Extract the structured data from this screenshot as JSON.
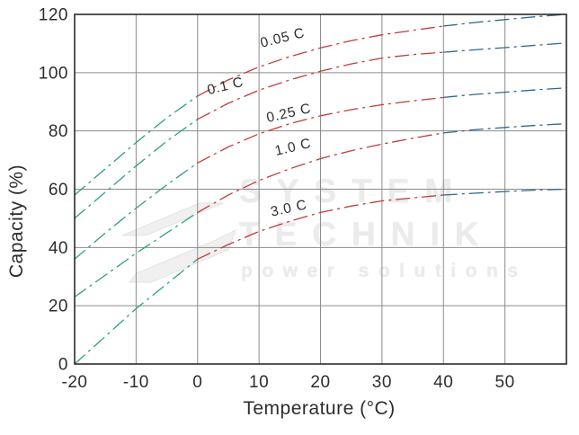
{
  "figure": {
    "watermark": {
      "line1": "SYSTEM",
      "line2": "TECHNIK",
      "line3": "power solutions"
    }
  },
  "chart_data": {
    "type": "line",
    "title": "",
    "xlabel": "Temperature (°C)",
    "ylabel": "Capacity (%)",
    "xlim": [
      -20,
      60
    ],
    "ylim": [
      0,
      120
    ],
    "x_ticks": [
      -20,
      -10,
      0,
      10,
      20,
      30,
      40,
      50
    ],
    "y_ticks": [
      0,
      20,
      40,
      60,
      80,
      100,
      120
    ],
    "grid": true,
    "line_style": "dash-dot",
    "legend_position": "inline-curve-labels",
    "segment_breaks_t": [
      0,
      40
    ],
    "colors": {
      "cold_below_0C": "#2fa07c",
      "mid_0_to_40C": "#c13b3b",
      "hot_above_40C": "#30688a",
      "grid": "#8c8c8c",
      "border": "#2b2b2b",
      "text": "#2d2d2d",
      "watermark": "#ebebeb"
    },
    "x": [
      -20,
      -15,
      -10,
      -5,
      0,
      5,
      10,
      15,
      20,
      25,
      30,
      35,
      40,
      45,
      50,
      55,
      60
    ],
    "series": [
      {
        "name": "0.05 C",
        "values": [
          58,
          67,
          76,
          84.5,
          92,
          97.5,
          102,
          105.5,
          108.5,
          111,
          113,
          114.5,
          116,
          117.2,
          118.2,
          119.2,
          120
        ]
      },
      {
        "name": "0.1 C",
        "values": [
          50,
          59,
          68,
          76.5,
          84,
          89.5,
          94,
          97.5,
          100.5,
          103,
          105,
          106.2,
          107,
          107.8,
          108.6,
          109.4,
          110.2
        ]
      },
      {
        "name": "0.25 C",
        "values": [
          36,
          45,
          53.5,
          61.5,
          69,
          74.5,
          79,
          82.5,
          85.2,
          87.3,
          89,
          90.3,
          91.5,
          92.5,
          93.3,
          94.1,
          94.8
        ]
      },
      {
        "name": "1.0 C",
        "values": [
          23,
          30.5,
          38,
          45,
          52,
          58,
          63,
          67,
          70.5,
          73.2,
          75.5,
          77.5,
          79.3,
          80.4,
          81.2,
          81.9,
          82.5
        ]
      },
      {
        "name": "3.0 C",
        "values": [
          0,
          9.5,
          19,
          27.5,
          36,
          41,
          45.5,
          49,
          52,
          54.2,
          56,
          57,
          58,
          58.6,
          59.2,
          59.7,
          60
        ]
      }
    ],
    "annotations": [
      {
        "text": "0.05 C",
        "t": 14.0,
        "cap": 110.5,
        "rot": -14
      },
      {
        "text": "0.1 C",
        "t": 4.7,
        "cap": 94.0,
        "rot": -14
      },
      {
        "text": "0.25 C",
        "t": 15.0,
        "cap": 84.7,
        "rot": -13
      },
      {
        "text": "1.0 C",
        "t": 15.7,
        "cap": 73.0,
        "rot": -13
      },
      {
        "text": "3.0 C",
        "t": 15.0,
        "cap": 52.0,
        "rot": -12
      }
    ]
  }
}
